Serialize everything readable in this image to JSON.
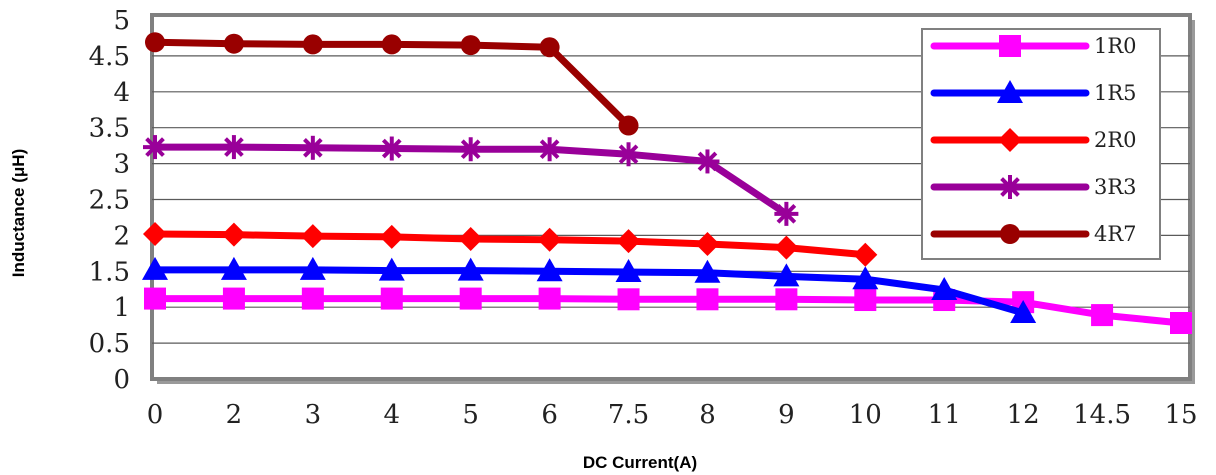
{
  "chart_data": {
    "type": "line",
    "title": "",
    "xlabel": "DC Current(A)",
    "ylabel": "Inductance (μH)",
    "categories": [
      "0",
      "2",
      "3",
      "4",
      "5",
      "6",
      "7.5",
      "8",
      "9",
      "10",
      "11",
      "12",
      "14.5",
      "15"
    ],
    "ylim": [
      0,
      5
    ],
    "yticks": [
      "0",
      "0.5",
      "1",
      "1.5",
      "2",
      "2.5",
      "3",
      "3.5",
      "4",
      "4.5",
      "5"
    ],
    "grid": "horizontal",
    "legend_position": "top-right",
    "series": [
      {
        "name": "1R0",
        "color": "#ff00ff",
        "marker": "square",
        "values": [
          1.12,
          1.12,
          1.12,
          1.12,
          1.12,
          1.12,
          1.11,
          1.11,
          1.11,
          1.1,
          1.1,
          1.07,
          0.89,
          0.78
        ]
      },
      {
        "name": "1R5",
        "color": "#0000ff",
        "marker": "triangle",
        "values": [
          1.52,
          1.52,
          1.52,
          1.51,
          1.51,
          1.5,
          1.49,
          1.48,
          1.43,
          1.39,
          1.24,
          0.92,
          null,
          null
        ]
      },
      {
        "name": "2R0",
        "color": "#ff0000",
        "marker": "diamond",
        "values": [
          2.02,
          2.01,
          1.99,
          1.98,
          1.95,
          1.94,
          1.92,
          1.88,
          1.83,
          1.73,
          null,
          null,
          null,
          null
        ]
      },
      {
        "name": "3R3",
        "color": "#990099",
        "marker": "asterisk",
        "values": [
          3.23,
          3.23,
          3.22,
          3.21,
          3.2,
          3.2,
          3.13,
          3.03,
          2.3,
          null,
          null,
          null,
          null,
          null
        ]
      },
      {
        "name": "4R7",
        "color": "#990000",
        "marker": "circle",
        "values": [
          4.69,
          4.67,
          4.66,
          4.66,
          4.65,
          4.62,
          3.53,
          null,
          null,
          null,
          null,
          null,
          null,
          null
        ]
      }
    ]
  }
}
